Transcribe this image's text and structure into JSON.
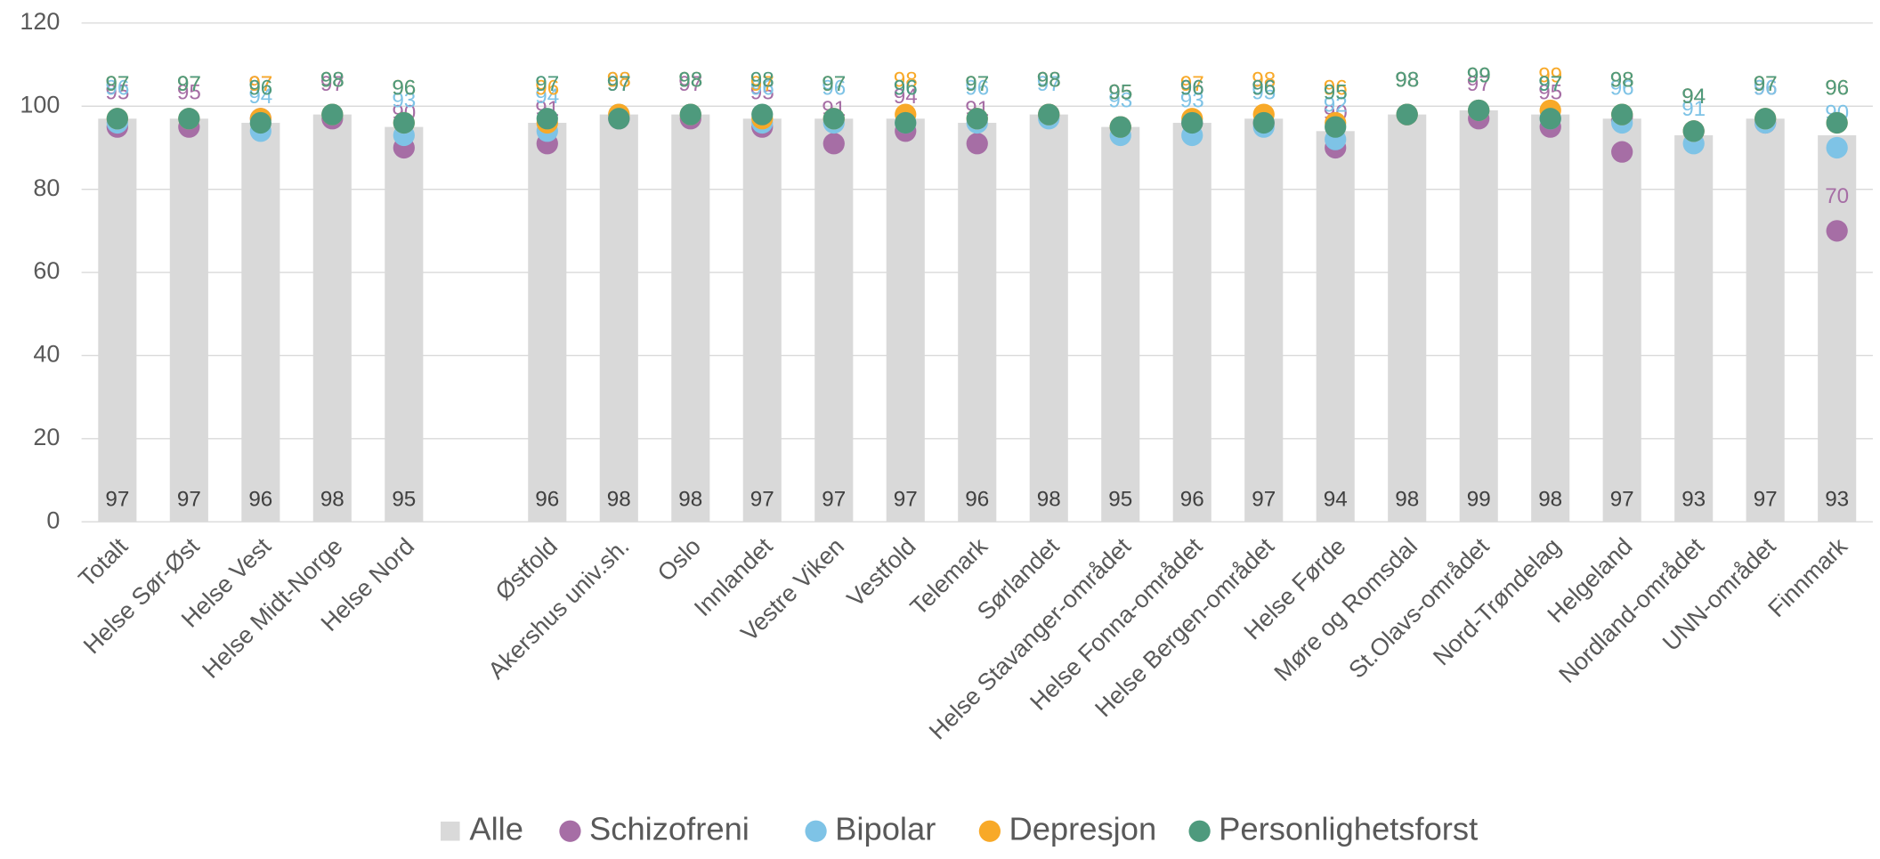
{
  "chart_data": {
    "type": "bar",
    "categories": [
      "Totalt",
      "Helse Sør-Øst",
      "Helse Vest",
      "Helse Midt-Norge",
      "Helse Nord",
      null,
      "Østfold",
      "Akershus univ.sh.",
      "Oslo",
      "Innlandet",
      "Vestre Viken",
      "Vestfold",
      "Telemark",
      "Sørlandet",
      "Helse Stavanger-området",
      "Helse Fonna-området",
      "Helse Bergen-området",
      "Helse Førde",
      "Møre og Romsdal",
      "St.Olavs-området",
      "Nord-Trøndelag",
      "Helgeland",
      "Nordland-området",
      "UNN-området",
      "Finnmark"
    ],
    "series": [
      {
        "name": "Alle",
        "kind": "bar",
        "color": "#d9d9d9",
        "values": [
          97,
          97,
          96,
          98,
          95,
          null,
          96,
          98,
          98,
          97,
          97,
          97,
          96,
          98,
          95,
          96,
          97,
          94,
          98,
          99,
          98,
          97,
          93,
          97,
          93
        ]
      },
      {
        "name": "Schizofreni",
        "kind": "scatter",
        "color": "#a66ea5",
        "values": [
          95,
          95,
          97,
          97,
          90,
          null,
          91,
          97,
          97,
          95,
          91,
          94,
          91,
          98,
          95,
          96,
          96,
          90,
          98,
          97,
          95,
          89,
          94,
          96,
          70
        ]
      },
      {
        "name": "Bipolar",
        "kind": "scatter",
        "color": "#7ec3e6",
        "values": [
          96,
          97,
          94,
          98,
          93,
          null,
          94,
          98,
          98,
          96,
          96,
          96,
          96,
          97,
          93,
          93,
          95,
          92,
          98,
          99,
          97,
          96,
          91,
          96,
          90
        ]
      },
      {
        "name": "Depresjon",
        "kind": "scatter",
        "color": "#f8a928",
        "values": [
          97,
          97,
          97,
          98,
          96,
          null,
          96,
          98,
          98,
          97,
          97,
          98,
          97,
          98,
          95,
          97,
          98,
          96,
          98,
          99,
          99,
          98,
          94,
          97,
          96
        ]
      },
      {
        "name": "Personlighetsforst",
        "kind": "scatter",
        "color": "#4e9a7d",
        "values": [
          97,
          97,
          96,
          98,
          96,
          null,
          97,
          97,
          98,
          98,
          97,
          96,
          97,
          98,
          95,
          96,
          96,
          95,
          98,
          99,
          97,
          98,
          94,
          97,
          96
        ]
      }
    ],
    "ylim": [
      0,
      120
    ],
    "yticks": [
      0,
      20,
      40,
      60,
      80,
      100,
      120
    ],
    "grid": true,
    "legend": "bottom"
  }
}
